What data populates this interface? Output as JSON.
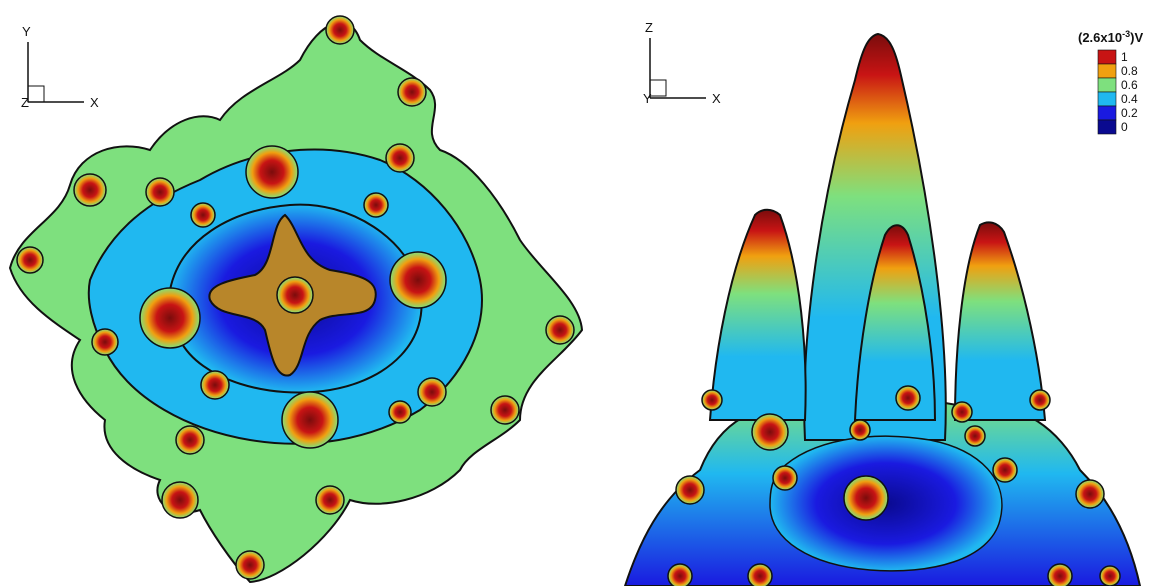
{
  "left_view": {
    "axis_vertical_label": "Y",
    "axis_horizontal_label": "X",
    "axis_depth_label": "Z"
  },
  "right_view": {
    "axis_vertical_label": "Z",
    "axis_horizontal_label": "X",
    "axis_depth_label": "Y"
  },
  "legend": {
    "title_prefix": "(2.6x10",
    "title_exponent": "-3",
    "title_suffix": ")V",
    "levels": [
      {
        "label": "1",
        "color": "#c81414"
      },
      {
        "label": "0.8",
        "color": "#f0a010"
      },
      {
        "label": "0.6",
        "color": "#7ee07e"
      },
      {
        "label": "0.4",
        "color": "#20b8f0"
      },
      {
        "label": "0.2",
        "color": "#1a1ae0"
      },
      {
        "label": "0",
        "color": "#0a0a90"
      }
    ]
  }
}
